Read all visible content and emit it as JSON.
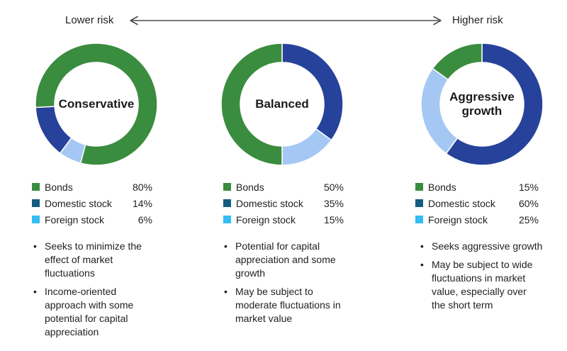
{
  "risk_scale": {
    "lower_label": "Lower risk",
    "higher_label": "Higher risk"
  },
  "palette": {
    "donut": {
      "bonds": "#3a8c3e",
      "domestic": "#27429a",
      "foreign": "#a4c8f3"
    },
    "legend_swatches": {
      "bonds": "#3a8c3e",
      "domestic": "#135c80",
      "foreign": "#33bdf2"
    },
    "text": "#1f1f1f",
    "arrow": "#4d4d4d"
  },
  "chart_data": [
    {
      "type": "pie",
      "subtype": "donut",
      "title": "Conservative",
      "center_label": "Conservative",
      "categories": [
        "Bonds",
        "Domestic stock",
        "Foreign stock"
      ],
      "keys": [
        "bonds",
        "domestic",
        "foreign"
      ],
      "values": [
        80,
        14,
        6
      ],
      "value_labels": [
        "80%",
        "14%",
        "6%"
      ],
      "unit": "percent",
      "legend_position": "below",
      "start_angle": 195,
      "segment_order": [
        "foreign",
        "domestic",
        "bonds"
      ],
      "bullets": [
        "Seeks to minimize the\neffect of market\nfluctuations",
        "Income-oriented\napproach with some\npotential for capital\nappreciation"
      ]
    },
    {
      "type": "pie",
      "subtype": "donut",
      "title": "Balanced",
      "center_label": "Balanced",
      "categories": [
        "Bonds",
        "Domestic stock",
        "Foreign stock"
      ],
      "keys": [
        "bonds",
        "domestic",
        "foreign"
      ],
      "values": [
        50,
        35,
        15
      ],
      "value_labels": [
        "50%",
        "35%",
        "15%"
      ],
      "unit": "percent",
      "legend_position": "below",
      "start_angle": 0,
      "segment_order": [
        "domestic",
        "foreign",
        "bonds"
      ],
      "bullets": [
        "Potential for capital\nappreciation and some\ngrowth",
        "May be subject to\nmoderate fluctuations in\nmarket value"
      ]
    },
    {
      "type": "pie",
      "subtype": "donut",
      "title": "Aggressive growth",
      "center_label": "Aggressive\ngrowth",
      "categories": [
        "Bonds",
        "Domestic stock",
        "Foreign stock"
      ],
      "keys": [
        "bonds",
        "domestic",
        "foreign"
      ],
      "values": [
        15,
        60,
        25
      ],
      "value_labels": [
        "15%",
        "60%",
        "25%"
      ],
      "unit": "percent",
      "legend_position": "below",
      "start_angle": 0,
      "segment_order": [
        "domestic",
        "foreign",
        "bonds"
      ],
      "bullets": [
        "Seeks aggressive growth",
        "May be subject to wide\nfluctuations in market\nvalue, especially over\nthe short term"
      ]
    }
  ]
}
